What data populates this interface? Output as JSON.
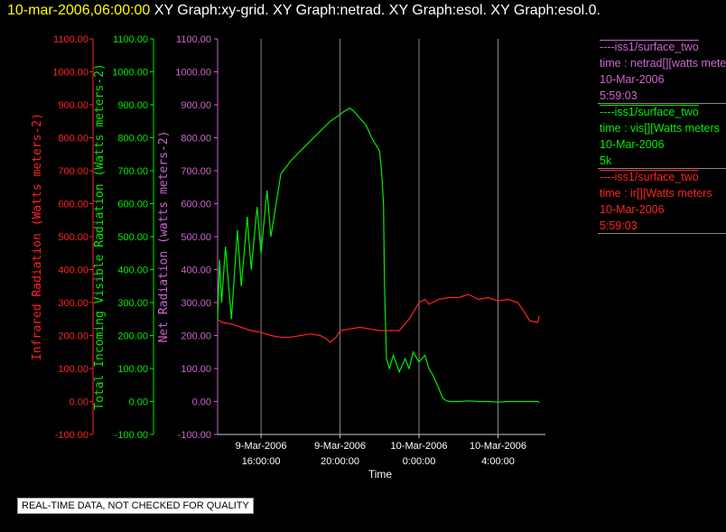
{
  "header": {
    "timestamp": "10-mar-2006,06:00:00",
    "graphs": "XY Graph:xy-grid.  XY Graph:netrad.  XY Graph:esol.  XY Graph:esol.0."
  },
  "legend": [
    {
      "title": "----iss1/surface_two",
      "line2": "time : netrad[][watts meters",
      "line3": "10-Mar-2006",
      "line4": "5:59:03",
      "color": "#cc66cc"
    },
    {
      "title": "----iss1/surface_two",
      "line2": "time : vis[][Watts meters",
      "line3": "10-Mar-2006",
      "line4": "5k",
      "color": "#00ee00"
    },
    {
      "title": "----iss1/surface_two",
      "line2": "time : ir[][Watts meters",
      "line3": "10-Mar-2006",
      "line4": "5:59:03",
      "color": "#ff2222"
    }
  ],
  "footer": "REAL-TIME DATA, NOT CHECKED FOR QUALITY",
  "chart_data": {
    "type": "line",
    "xlabel": "Time",
    "x_ticks": [
      {
        "t": 16,
        "l1": "9-Mar-2006",
        "l2": "16:00:00"
      },
      {
        "t": 20,
        "l1": "9-Mar-2006",
        "l2": "20:00:00"
      },
      {
        "t": 24,
        "l1": "10-Mar-2006",
        "l2": "0:00:00"
      },
      {
        "t": 28,
        "l1": "10-Mar-2006",
        "l2": "4:00:00"
      }
    ],
    "xlim": [
      13.8,
      30.4
    ],
    "ylim": [
      -100,
      1100
    ],
    "y_ticks": [
      "-100.00",
      "0.00",
      "100.00",
      "200.00",
      "300.00",
      "400.00",
      "500.00",
      "600.00",
      "700.00",
      "800.00",
      "900.00",
      "1000.00",
      "1100.00"
    ],
    "axes": [
      {
        "label": "Infrared Radiation (Watts meters-2)",
        "color": "#ff2222"
      },
      {
        "label": "Total Incoming Visible Radiation (Watts meters-2)",
        "color": "#00ee00"
      },
      {
        "label": "Net Radiation (watts meters-2)",
        "color": "#cc66cc"
      }
    ],
    "grid": "vertical",
    "series": [
      {
        "name": "vis",
        "color": "#00ee00",
        "x": [
          13.8,
          13.9,
          14.0,
          14.2,
          14.5,
          14.8,
          15.0,
          15.3,
          15.5,
          15.8,
          16.0,
          16.3,
          16.5,
          17.0,
          17.5,
          18.0,
          18.5,
          19.0,
          19.5,
          20.0,
          20.2,
          20.5,
          20.7,
          21.0,
          21.3,
          21.6,
          22.0,
          22.1,
          22.2,
          22.25,
          22.35,
          22.5,
          22.7,
          23.0,
          23.3,
          23.5,
          23.7,
          24.0,
          24.3,
          24.5,
          24.7,
          25.0,
          25.2,
          25.4,
          25.6,
          25.8,
          26.0,
          26.5,
          27.0,
          27.5,
          28.0,
          28.5,
          29.0,
          29.5,
          30.0,
          30.1
        ],
        "y": [
          250,
          430,
          300,
          470,
          250,
          520,
          350,
          560,
          400,
          590,
          450,
          640,
          500,
          690,
          730,
          760,
          790,
          820,
          850,
          870,
          880,
          890,
          880,
          860,
          840,
          800,
          760,
          700,
          600,
          350,
          130,
          100,
          140,
          90,
          130,
          100,
          150,
          120,
          140,
          100,
          80,
          40,
          10,
          2,
          0,
          0,
          0,
          2,
          0,
          0,
          -2,
          0,
          0,
          0,
          0,
          -3
        ]
      },
      {
        "name": "ir",
        "color": "#ff2222",
        "x": [
          13.8,
          14.0,
          14.5,
          15.0,
          15.5,
          16.0,
          16.5,
          17.0,
          17.5,
          18.0,
          18.5,
          19.0,
          19.3,
          19.5,
          19.8,
          20.0,
          20.5,
          21.0,
          21.5,
          22.0,
          22.5,
          23.0,
          23.5,
          23.8,
          24.0,
          24.3,
          24.5,
          25.0,
          25.5,
          26.0,
          26.5,
          27.0,
          27.5,
          28.0,
          28.5,
          29.0,
          29.3,
          29.6,
          30.0,
          30.1
        ],
        "y": [
          250,
          240,
          235,
          225,
          215,
          210,
          200,
          195,
          195,
          200,
          205,
          200,
          190,
          180,
          195,
          215,
          220,
          225,
          220,
          215,
          215,
          215,
          250,
          280,
          300,
          310,
          295,
          310,
          315,
          315,
          325,
          310,
          315,
          305,
          310,
          300,
          275,
          245,
          240,
          260
        ]
      }
    ]
  }
}
